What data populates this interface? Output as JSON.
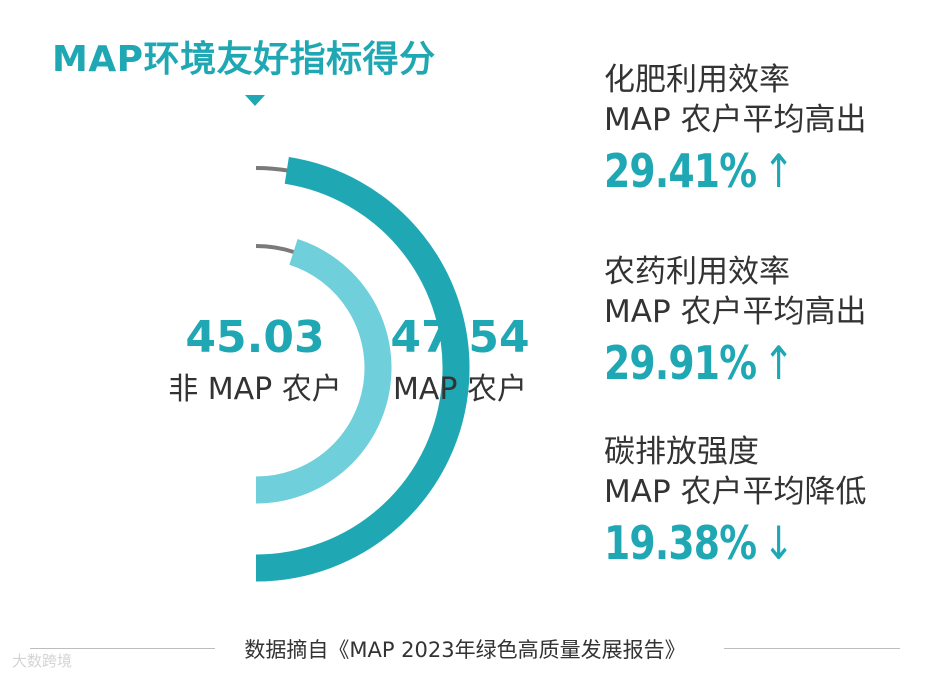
{
  "title": "MAP环境友好指标得分",
  "colors": {
    "outer_arc": "#1fa8b3",
    "inner_arc": "#6fcfdb",
    "track": "#7a7a7a",
    "accent_text": "#1fa8b3"
  },
  "chart_data": {
    "type": "radial-bar",
    "max": 100,
    "series": [
      {
        "name": "非 MAP 农户",
        "value": 45.03,
        "value_label": "45.03",
        "ring": "inner"
      },
      {
        "name": "MAP 农户",
        "value": 47.54,
        "value_label": "47.54",
        "ring": "outer"
      }
    ]
  },
  "stats": [
    {
      "line1": "化肥利用效率",
      "line2": "MAP 农户平均高出",
      "value": "29.41%",
      "arrow": "↑"
    },
    {
      "line1": "农药利用效率",
      "line2": "MAP 农户平均高出",
      "value": "29.91%",
      "arrow": "↑"
    },
    {
      "line1": "碳排放强度",
      "line2": "MAP 农户平均降低",
      "value": "19.38%",
      "arrow": "↓"
    }
  ],
  "footer": "数据摘自《MAP 2023年绿色高质量发展报告》",
  "watermark": "大数跨境"
}
